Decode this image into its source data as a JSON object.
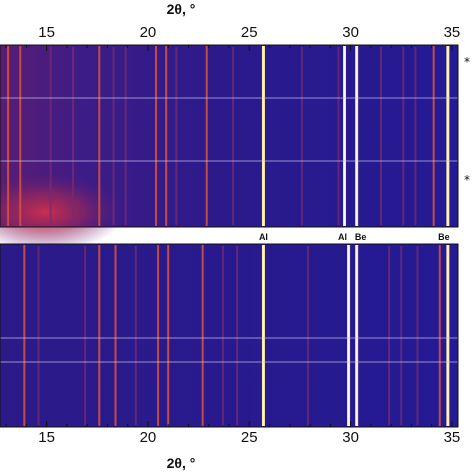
{
  "chart_data": {
    "type": "heatmap",
    "xlabel": "2θ, °",
    "xlim": [
      12.7,
      35.3
    ],
    "x_ticks": [
      15,
      20,
      25,
      30,
      35
    ],
    "x_tick_labels": [
      "15",
      "20",
      "25",
      "30",
      "35"
    ],
    "colormap": [
      "#1e1580",
      "#3a1a7a",
      "#8a2060",
      "#d24a3a",
      "#f2a23a",
      "#fff7a0"
    ],
    "panels": [
      {
        "name": "top",
        "tick_edge": "top",
        "bright_lines": [
          13.1,
          13.7,
          17.6,
          20.4,
          20.9,
          22.9,
          25.7,
          29.7,
          30.3,
          34.1,
          34.8
        ],
        "faint_lines": [
          15.2,
          16.3,
          18.3,
          18.9,
          21.4,
          24.2,
          27.6,
          29.4,
          31.5,
          32.6,
          33.2
        ],
        "hot_region": {
          "x_center": 15.0,
          "note": ""
        },
        "star_markers": [
          "*",
          "*"
        ]
      },
      {
        "name": "bottom",
        "tick_edge": "bottom",
        "bright_lines": [
          13.9,
          17.6,
          18.4,
          20.5,
          21.0,
          22.7,
          25.7,
          29.9,
          30.3,
          34.4,
          34.8
        ],
        "faint_lines": [
          14.6,
          16.9,
          19.4,
          23.7,
          24.4,
          27.9,
          31.9,
          32.5,
          33.3
        ],
        "hot_region": null
      }
    ],
    "reference_lines": [
      {
        "label": "Al",
        "x": 25.7
      },
      {
        "label": "Al",
        "x": 29.8
      },
      {
        "label": "Be",
        "x": 30.3
      },
      {
        "label": "Be",
        "x": 34.8
      }
    ]
  }
}
